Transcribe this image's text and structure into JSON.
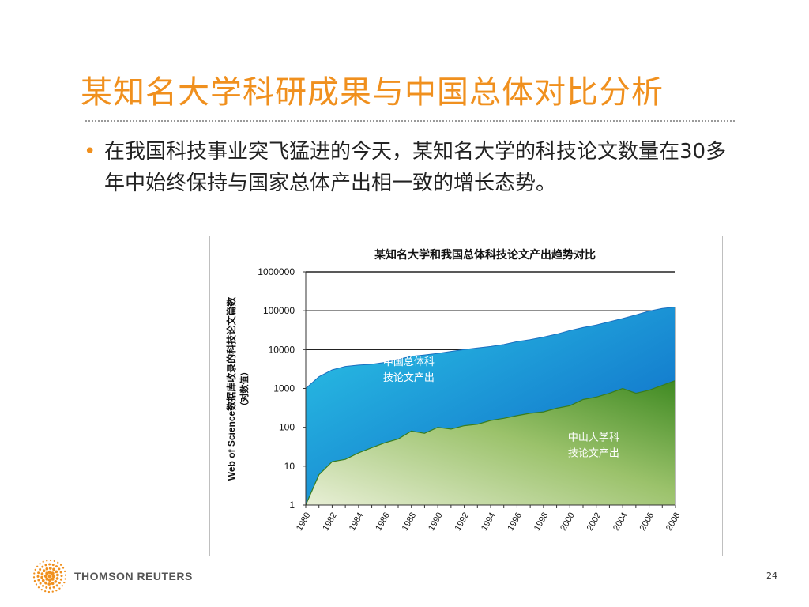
{
  "slide": {
    "title": "某知名大学科研成果与中国总体对比分析",
    "bullet": "在我国科技事业突飞猛进的今天，某知名大学的科技论文数量在30多年中始终保持与国家总体产出相一致的增长态势。",
    "page_number": "24"
  },
  "footer": {
    "brand": "THOMSON REUTERS"
  },
  "colors": {
    "accent": "#f0901e",
    "national_area": "#1a9fdc",
    "university_area": "#5a9a2c"
  },
  "chart_data": {
    "type": "area",
    "title": "某知名大学和我国总体科技论文产出趋势对比",
    "ylabel_line1": "Web of Science数据库收录的科技论文篇数",
    "ylabel_line2": "（对数值）",
    "xlabel": "",
    "yscale": "log",
    "ylim": [
      1,
      1000000
    ],
    "yticks": [
      "1",
      "10",
      "100",
      "1000",
      "10000",
      "100000",
      "1000000"
    ],
    "xticks": [
      "1980",
      "1982",
      "1984",
      "1986",
      "1988",
      "1990",
      "1992",
      "1994",
      "1996",
      "1998",
      "2000",
      "2002",
      "2004",
      "2006",
      "2008"
    ],
    "x": [
      1980,
      1981,
      1982,
      1983,
      1984,
      1985,
      1986,
      1987,
      1988,
      1989,
      1990,
      1991,
      1992,
      1993,
      1994,
      1995,
      1996,
      1997,
      1998,
      1999,
      2000,
      2001,
      2002,
      2003,
      2004,
      2005,
      2006,
      2007,
      2008
    ],
    "series": [
      {
        "name": "中国总体科技论文产出",
        "values": [
          1000,
          2000,
          3000,
          3700,
          4000,
          4200,
          4700,
          5600,
          6700,
          7300,
          8000,
          9000,
          10000,
          11000,
          12000,
          13500,
          16000,
          18000,
          21000,
          25000,
          31000,
          37000,
          43000,
          52000,
          63000,
          78000,
          98000,
          115000,
          125000
        ]
      },
      {
        "name": "中山大学科技论文产出",
        "values": [
          1,
          6,
          13,
          15,
          22,
          30,
          40,
          50,
          80,
          70,
          100,
          90,
          110,
          120,
          150,
          170,
          200,
          230,
          250,
          310,
          360,
          520,
          600,
          750,
          1000,
          750,
          900,
          1200,
          1600
        ]
      }
    ],
    "grid": false,
    "gridlines_at": [
      100000,
      10000,
      1000000
    ]
  }
}
